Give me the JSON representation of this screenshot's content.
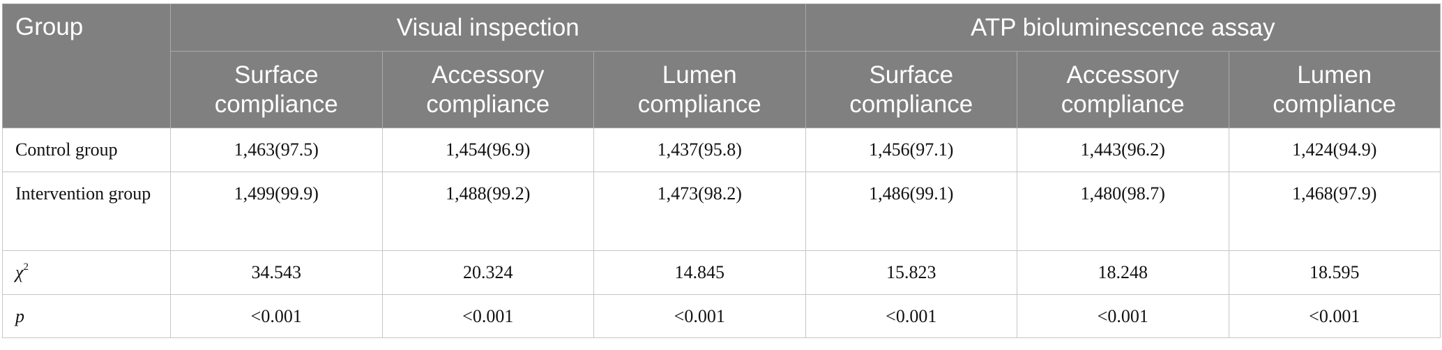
{
  "header": {
    "group": "Group",
    "groups": [
      "Visual inspection",
      "ATP bioluminescence assay"
    ],
    "columns": [
      "Surface compliance",
      "Accessory compliance",
      "Lumen compliance",
      "Surface compliance",
      "Accessory compliance",
      "Lumen compliance"
    ]
  },
  "rows": [
    {
      "label": "Control group",
      "cells": [
        "1,463(97.5)",
        "1,454(96.9)",
        "1,437(95.8)",
        "1,456(97.1)",
        "1,443(96.2)",
        "1,424(94.9)"
      ]
    },
    {
      "label": "Intervention group",
      "cells": [
        "1,499(99.9)",
        "1,488(99.2)",
        "1,473(98.2)",
        "1,486(99.1)",
        "1,480(98.7)",
        "1,468(97.9)"
      ]
    },
    {
      "label": "χ",
      "label_sup": "2",
      "cells": [
        "34.543",
        "20.324",
        "14.845",
        "15.823",
        "18.248",
        "18.595"
      ]
    },
    {
      "label": "p",
      "cells": [
        "<0.001",
        "<0.001",
        "<0.001",
        "<0.001",
        "<0.001",
        "<0.001"
      ]
    }
  ]
}
